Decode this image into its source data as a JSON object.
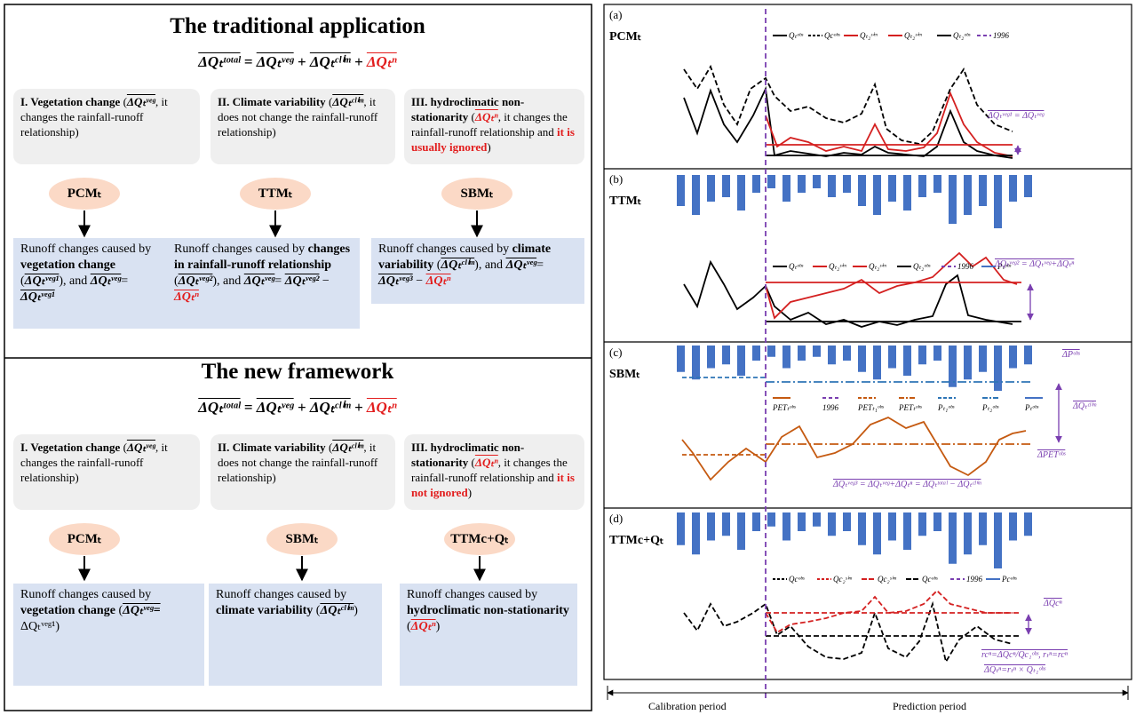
{
  "traditional": {
    "title": "The traditional application",
    "equation": [
      "ΔQₜᵗᵒᵗᵃˡ",
      " = ",
      "ΔQₜᵛᵉᵍ",
      " + ",
      "ΔQₜᶜˡⁱᵐ",
      " + ",
      "ΔQₜⁿ"
    ],
    "components": [
      [
        "I.    Vegetation change",
        " (",
        "ΔQₜᵛᵉᵍ",
        ", it changes the rainfall-runoff relationship)"
      ],
      [
        "II.    Climate variability",
        " (",
        "ΔQₜᶜˡⁱᵐ",
        ", it does not change the rainfall-runoff relationship)"
      ],
      [
        "III.  hydroclimatic non-stationarity",
        " (",
        "ΔQₜⁿ",
        ", it changes the rainfall-runoff relationship and ",
        "it is usually ignored",
        ")"
      ]
    ],
    "methods": [
      "PCMₜ",
      "TTMₜ",
      "SBMₜ"
    ],
    "outcomes": [
      [
        "Runoff changes caused by ",
        "vegetation change",
        " (",
        "ΔQₜᵛᵉᵍ¹",
        "), and ",
        "ΔQₜᵛᵉᵍ",
        "= ",
        "ΔQₜᵛᵉᵍ¹"
      ],
      [
        "Runoff changes caused by ",
        "changes in rainfall-runoff relationship",
        " (",
        "ΔQₜᵛᵉᵍ²",
        "), and ",
        "ΔQₜᵛᵉᵍ",
        "= ",
        "ΔQₜᵛᵉᵍ²",
        " − ",
        "ΔQₜⁿ"
      ],
      [
        "Runoff changes caused by ",
        "climate variability",
        " (",
        "ΔQₜᶜˡⁱᵐ",
        "), and ",
        "ΔQₜᵛᵉᵍ",
        "= ",
        "ΔQₜᵛᵉᵍ³",
        " − ",
        "ΔQₜⁿ"
      ]
    ]
  },
  "new_framework": {
    "title": "The new framework",
    "equation": [
      "ΔQₜᵗᵒᵗᵃˡ",
      " = ",
      "ΔQₜᵛᵉᵍ",
      " + ",
      "ΔQₜᶜˡⁱᵐ",
      " + ",
      "ΔQₜⁿ"
    ],
    "components": [
      [
        "I.    Vegetation change",
        " (",
        "ΔQₜᵛᵉᵍ",
        ", it changes the rainfall-runoff relationship)"
      ],
      [
        "II.    Climate variability",
        " (",
        "ΔQₜᶜˡⁱᵐ",
        ", it does not change the rainfall-runoff relationship)"
      ],
      [
        "III.  hydroclimatic non-stationarity",
        " (",
        "ΔQₜⁿ",
        ", it changes the rainfall-runoff relationship and ",
        "it is not ignored",
        ")"
      ]
    ],
    "methods": [
      "PCMₜ",
      "SBMₜ",
      "TTMc+Qₜ"
    ],
    "outcomes": [
      [
        "Runoff changes caused by ",
        "vegetation change",
        " (",
        "ΔQₜᵛᵉᵍ",
        "= ",
        "ΔQₜᵛᵉᵍ¹",
        ")"
      ],
      [
        "Runoff changes caused by ",
        "climate variability",
        " (",
        "ΔQₜᶜˡⁱᵐ",
        ")"
      ],
      [
        "Runoff changes caused by ",
        "hydroclimatic non-stationarity",
        " (",
        "ΔQₜⁿ",
        ")"
      ]
    ]
  },
  "panels": [
    {
      "label": "(a)",
      "method": "PCMₜ",
      "legend": [
        "Qₜᵒᵇˢ",
        "Qcᵒᵇˢ",
        "Qₜ₂ˢⁱᵐ",
        "Qₜ₂ˢⁱᵐ",
        "Qₜ₂ᵒᵇˢ",
        "1996"
      ],
      "annotations": [
        "ΔQₜᵛᵉᵍ¹ = ΔQₜᵛᵉᵍ"
      ]
    },
    {
      "label": "(b)",
      "method": "TTMₜ",
      "legend": [
        "Qₜᵒᵇˢ",
        "Qₜ₂ˢⁱᵐ",
        "Qₜ₂ˢⁱᵐ",
        "Qₜ₂ᵒᵇˢ",
        "1996",
        "Pₜᵒᵇˢ"
      ],
      "annotations": [
        "ΔQₜᵛᵉᵍ² = ΔQₜᵛᵉᵍ+ΔQₜⁿ"
      ]
    },
    {
      "label": "(c)",
      "method": "SBMₜ",
      "legend": [
        "PETₜᵒᵇˢ",
        "1996",
        "PETₜ₁ᵒᵇˢ",
        "PETₜᵒᵇˢ",
        "Pₜ₁ᵒᵇˢ",
        "Pₜ₂ᵒᵇˢ",
        "Pₜᵒᵇˢ"
      ],
      "annotations": [
        "ΔPᵒᵇˢ",
        "ΔQₜᶜˡⁱᵐ",
        "ΔPETᵒᵇˢ",
        "ΔQₜᵛᵉᵍ³ = ΔQₜᵛᵉᵍ+ΔQₜⁿ = ΔQₜᵗᵒᵗᵃˡ − ΔQₜᶜˡⁱᵐ"
      ]
    },
    {
      "label": "(d)",
      "method": "TTMc+Qₜ",
      "legend": [
        "Qcᵒᵇˢ",
        "Qc₂ˢⁱᵐ",
        "Qc₂ˢⁱᵐ",
        "Qcᵒᵇˢ",
        "1996",
        "Pcᵒᵇˢ"
      ],
      "annotations": [
        "ΔQcⁿ",
        "rcⁿ=ΔQcⁿ/Qc₁ᵒᵇˢ, rₜⁿ=rcⁿ",
        "ΔQₜⁿ=rₜⁿ × Qₜ₁ᵒᵇˢ"
      ]
    }
  ],
  "timeline": {
    "calibration": "Calibration period",
    "prediction": "Prediction period"
  }
}
